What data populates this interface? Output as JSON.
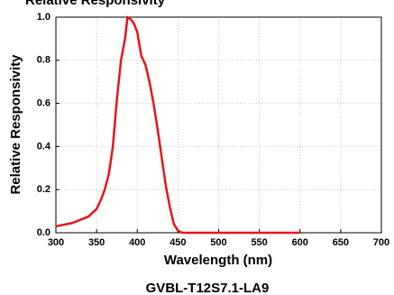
{
  "chart_data": {
    "type": "line",
    "title": "Relative Responsivity",
    "xlabel": "Wavelength (nm)",
    "ylabel": "Relative Responsivity",
    "caption": "GVBL-T12S7.1-LA9",
    "x": [
      300,
      320,
      340,
      350,
      355,
      360,
      365,
      370,
      375,
      380,
      385,
      388,
      392,
      396,
      400,
      405,
      410,
      415,
      420,
      425,
      430,
      435,
      440,
      445,
      450,
      455,
      460,
      500,
      550,
      600
    ],
    "series": [
      {
        "color": "#e8141a",
        "values": [
          0.03,
          0.045,
          0.075,
          0.11,
          0.15,
          0.2,
          0.27,
          0.4,
          0.62,
          0.8,
          0.9,
          1.0,
          0.99,
          0.97,
          0.93,
          0.82,
          0.78,
          0.7,
          0.6,
          0.48,
          0.35,
          0.22,
          0.12,
          0.04,
          0.01,
          0,
          0,
          0,
          0,
          0
        ]
      }
    ],
    "xlim": [
      300,
      700
    ],
    "xticks": [
      300,
      350,
      400,
      450,
      500,
      550,
      600,
      650,
      700
    ],
    "ylim": [
      0,
      1
    ],
    "yticks": [
      {
        "value": 0,
        "label": "0.0"
      },
      0.2,
      0.4,
      0.6,
      0.8,
      {
        "value": 1,
        "label": "1.0"
      }
    ],
    "grid": true
  }
}
